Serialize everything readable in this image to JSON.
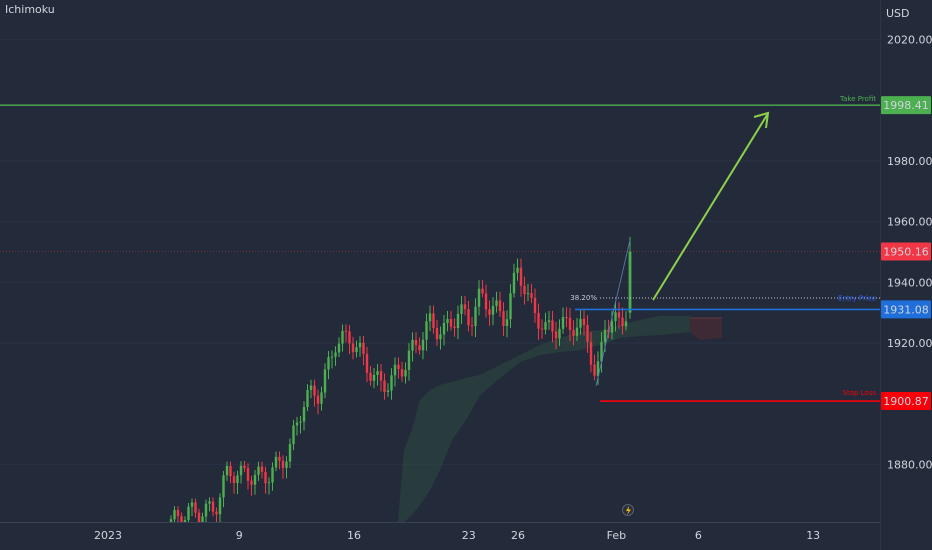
{
  "chart_data": {
    "type": "candlestick",
    "indicator_label": "Ichimoku",
    "currency": "USD",
    "y_axis": {
      "ticks": [
        {
          "value": 2020,
          "label": "2020.00"
        },
        {
          "value": 1980,
          "label": "1980.00"
        },
        {
          "value": 1960,
          "label": "1960.00"
        },
        {
          "value": 1940,
          "label": "1940.00"
        },
        {
          "value": 1920,
          "label": "1920.00"
        },
        {
          "value": 1880,
          "label": "1880.00"
        }
      ],
      "range": [
        1858,
        2030
      ]
    },
    "x_axis": {
      "ticks": [
        {
          "date": "2023-01-01",
          "label": "2023"
        },
        {
          "date": "2023-01-09",
          "label": "9"
        },
        {
          "date": "2023-01-16",
          "label": "16"
        },
        {
          "date": "2023-01-23",
          "label": "23"
        },
        {
          "date": "2023-01-26",
          "label": "26"
        },
        {
          "date": "2023-02-01",
          "label": "Feb"
        },
        {
          "date": "2023-02-06",
          "label": "6"
        },
        {
          "date": "2023-02-13",
          "label": "13"
        }
      ]
    },
    "levels": [
      {
        "name": "Take Profit",
        "value": 1998.41,
        "label": "1998.41",
        "color": "#4caf50"
      },
      {
        "name": "current",
        "value": 1950.16,
        "label": "1950.16",
        "color": "#f23645"
      },
      {
        "name": "Entry",
        "value": 1931.08,
        "label": "1931.08",
        "color": "#1e6fd9"
      },
      {
        "name": "Stop Loss",
        "value": 1900.87,
        "label": "1900.87",
        "color": "#f7000a"
      }
    ],
    "annotations": {
      "take_profit_text": "Take Profit",
      "stop_loss_text": "Stop Loss",
      "fib_text": "38.20%",
      "entry_text": "Entry Price"
    },
    "colors": {
      "up": "#4caf50",
      "down": "#f23645",
      "cloud": "#2f4a40",
      "background": "#232b3b",
      "arrow": "#8ed04a"
    }
  }
}
